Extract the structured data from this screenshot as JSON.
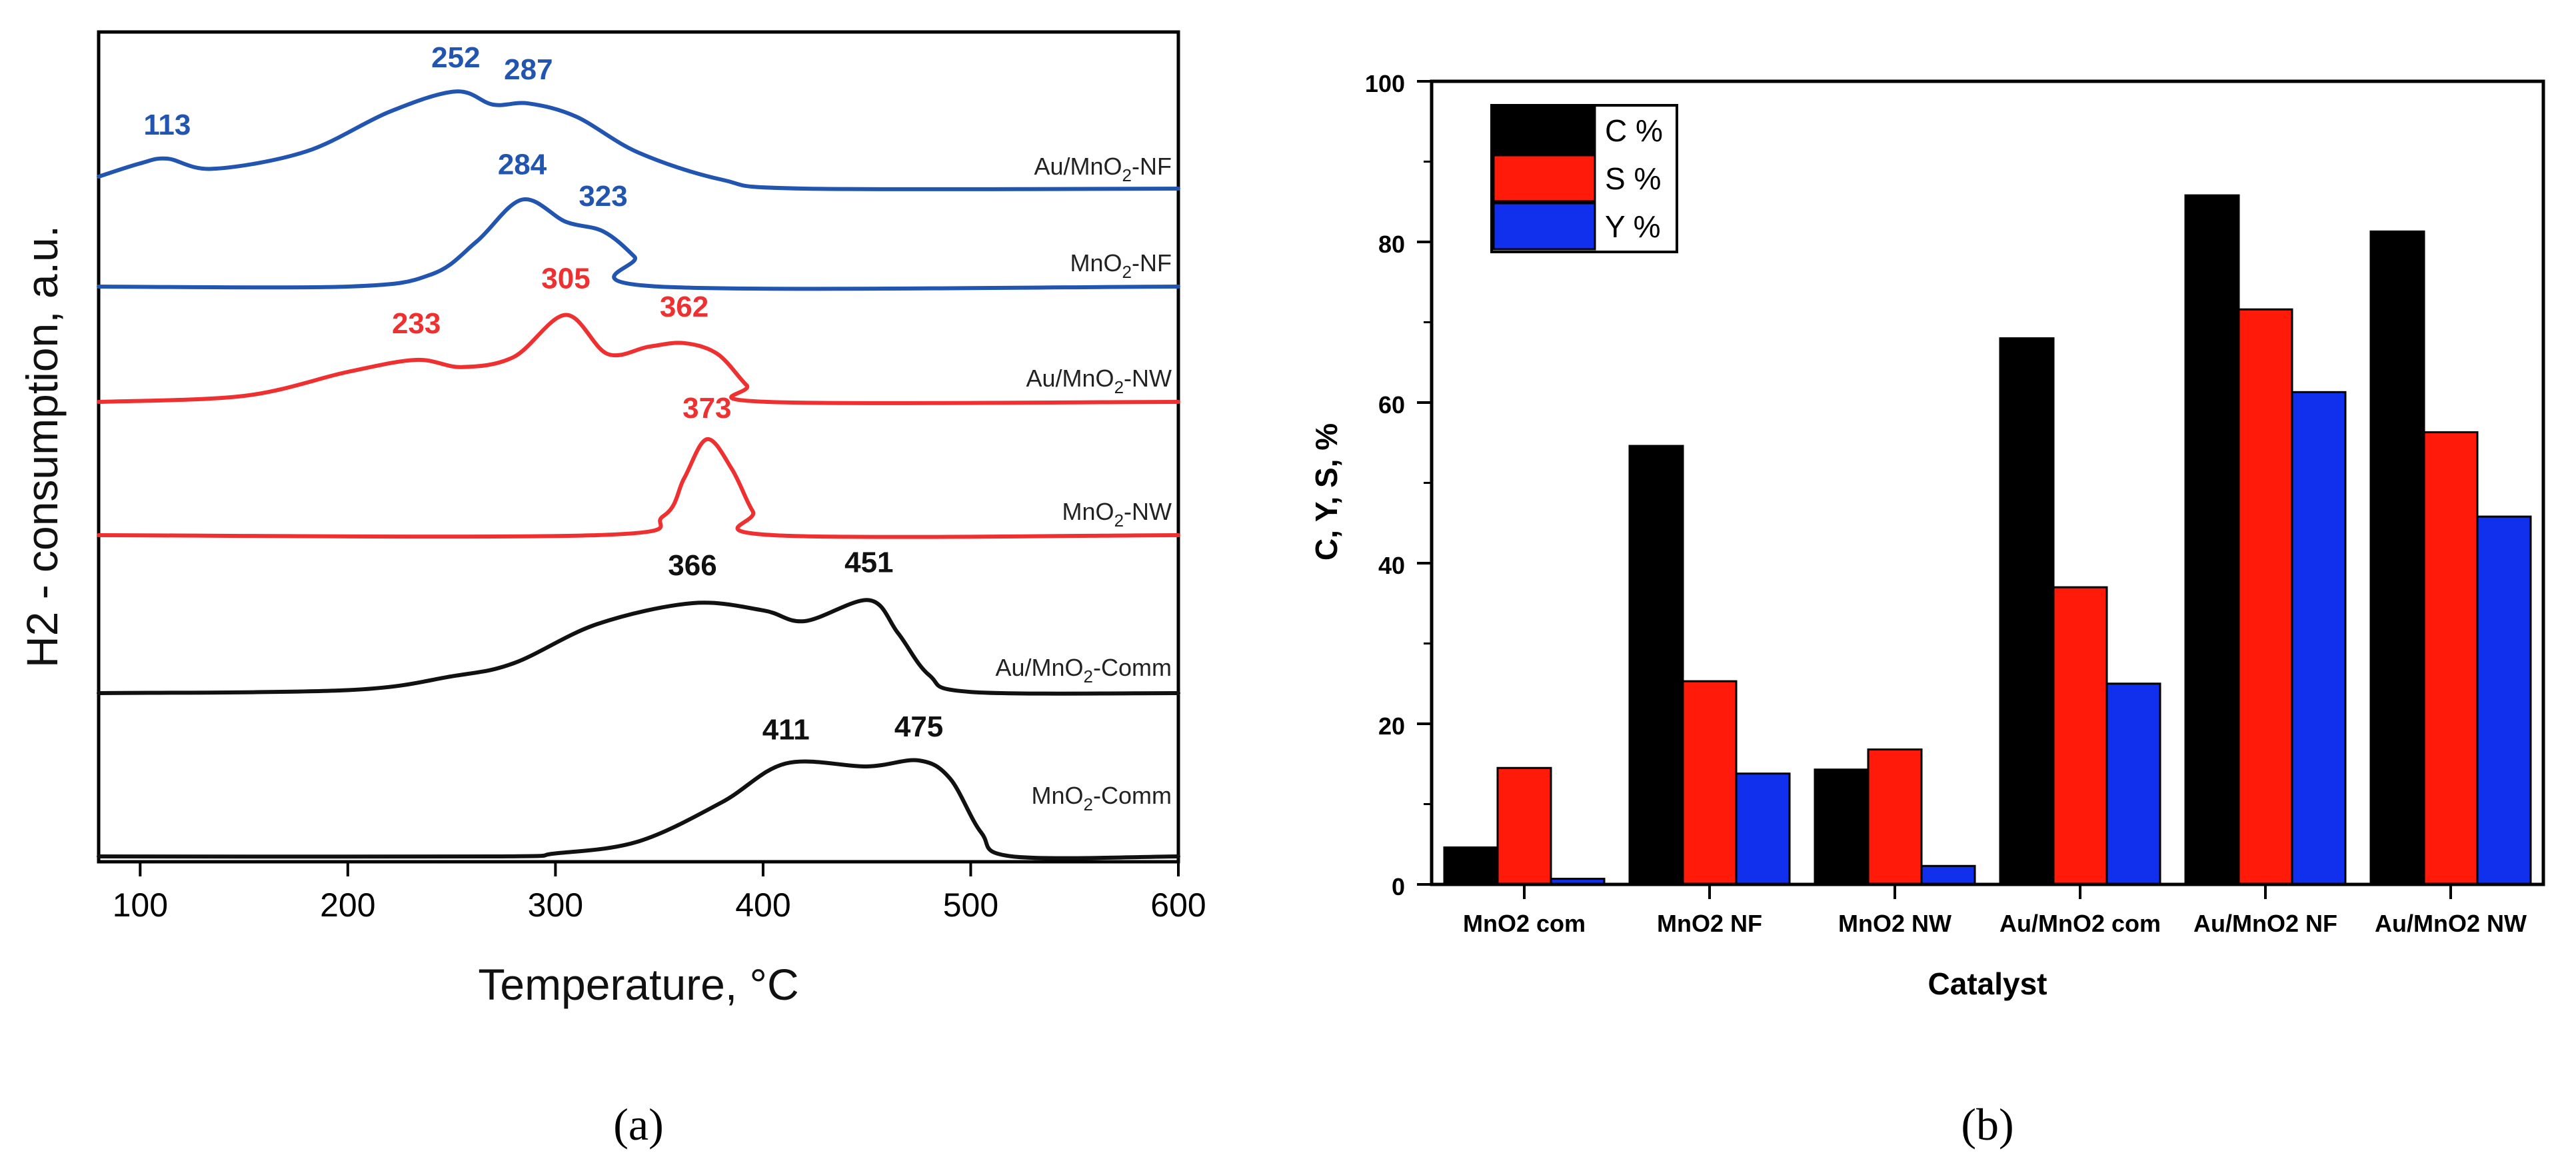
{
  "chart_data": [
    {
      "type": "line",
      "panel": "(a)",
      "xlabel": "Temperature, °C",
      "ylabel": "H2 - consumption, a.u.",
      "xlim": [
        80,
        600
      ],
      "xticks": [
        "100",
        "200",
        "300",
        "400",
        "500",
        "600"
      ],
      "series": [
        {
          "name": "Au/MnO2-NF",
          "color": "#2255b0",
          "x": [
            80,
            100,
            113,
            135,
            180,
            220,
            252,
            270,
            287,
            310,
            340,
            380,
            420,
            600
          ],
          "y": [
            0.2,
            0.42,
            0.5,
            0.33,
            0.62,
            1.28,
            1.62,
            1.4,
            1.42,
            1.2,
            0.6,
            0.15,
            0,
            0
          ],
          "peaks": [
            {
              "x": 113,
              "label": "113"
            },
            {
              "x": 252,
              "label": "252"
            },
            {
              "x": 287,
              "label": "287"
            }
          ]
        },
        {
          "name": "MnO2-NF",
          "color": "#2255b0",
          "x": [
            80,
            200,
            240,
            262,
            284,
            305,
            323,
            338,
            350,
            600
          ],
          "y": [
            0,
            0,
            0.2,
            0.75,
            1.45,
            1.08,
            0.92,
            0.5,
            0,
            0
          ],
          "peaks": [
            {
              "x": 284,
              "label": "284"
            },
            {
              "x": 323,
              "label": "323"
            }
          ]
        },
        {
          "name": "Au/MnO2-NW",
          "color": "#ee3030",
          "x": [
            80,
            150,
            200,
            233,
            255,
            280,
            305,
            325,
            345,
            362,
            378,
            392,
            402,
            600
          ],
          "y": [
            0,
            0.1,
            0.5,
            0.7,
            0.58,
            0.75,
            1.45,
            0.8,
            0.92,
            0.98,
            0.8,
            0.28,
            0,
            0
          ],
          "peaks": [
            {
              "x": 233,
              "label": "233"
            },
            {
              "x": 305,
              "label": "305"
            },
            {
              "x": 362,
              "label": "362"
            }
          ]
        },
        {
          "name": "MnO2-NW",
          "color": "#ee3030",
          "x": [
            80,
            320,
            352,
            362,
            373,
            385,
            395,
            405,
            600
          ],
          "y": [
            0,
            0,
            0.32,
            0.95,
            1.6,
            1.1,
            0.4,
            0,
            0
          ],
          "peaks": [
            {
              "x": 373,
              "label": "373"
            }
          ]
        },
        {
          "name": "Au/MnO2-Comm",
          "color": "#111111",
          "x": [
            80,
            200,
            250,
            280,
            320,
            366,
            400,
            420,
            451,
            465,
            480,
            500,
            600
          ],
          "y": [
            0,
            0.05,
            0.28,
            0.5,
            1.15,
            1.5,
            1.38,
            1.2,
            1.55,
            1.0,
            0.3,
            0.02,
            0
          ],
          "peaks": [
            {
              "x": 366,
              "label": "366"
            },
            {
              "x": 451,
              "label": "451"
            }
          ]
        },
        {
          "name": "MnO2-Comm",
          "color": "#111111",
          "x": [
            80,
            270,
            300,
            340,
            380,
            411,
            450,
            475,
            490,
            505,
            520,
            600
          ],
          "y": [
            0,
            0,
            0.05,
            0.25,
            0.9,
            1.55,
            1.5,
            1.6,
            1.3,
            0.4,
            0,
            0
          ],
          "peaks": [
            {
              "x": 411,
              "label": "411"
            },
            {
              "x": 475,
              "label": "475"
            }
          ]
        }
      ]
    },
    {
      "type": "bar",
      "panel": "(b)",
      "xlabel": "Catalyst",
      "ylabel": "C, Y, S, %",
      "ylim": [
        0,
        100
      ],
      "yticks": [
        "0",
        "20",
        "40",
        "60",
        "80",
        "100"
      ],
      "categories": [
        "MnO2 com",
        "MnO2 NF",
        "MnO2 NW",
        "Au/MnO2 com",
        "Au/MnO2 NF",
        "Au/MnO2 NW"
      ],
      "series": [
        {
          "name": "C %",
          "color": "#000000",
          "values": [
            4.6,
            54.6,
            14.3,
            68.0,
            85.8,
            81.3
          ]
        },
        {
          "name": "S %",
          "color": "#ff1a0a",
          "values": [
            14.5,
            25.3,
            16.8,
            37.0,
            71.6,
            56.3
          ]
        },
        {
          "name": "Y %",
          "color": "#1030ee",
          "values": [
            0.7,
            13.8,
            2.3,
            25.0,
            61.3,
            45.8
          ]
        }
      ]
    }
  ],
  "captions": {
    "a": "(a)",
    "b": "(b)"
  }
}
